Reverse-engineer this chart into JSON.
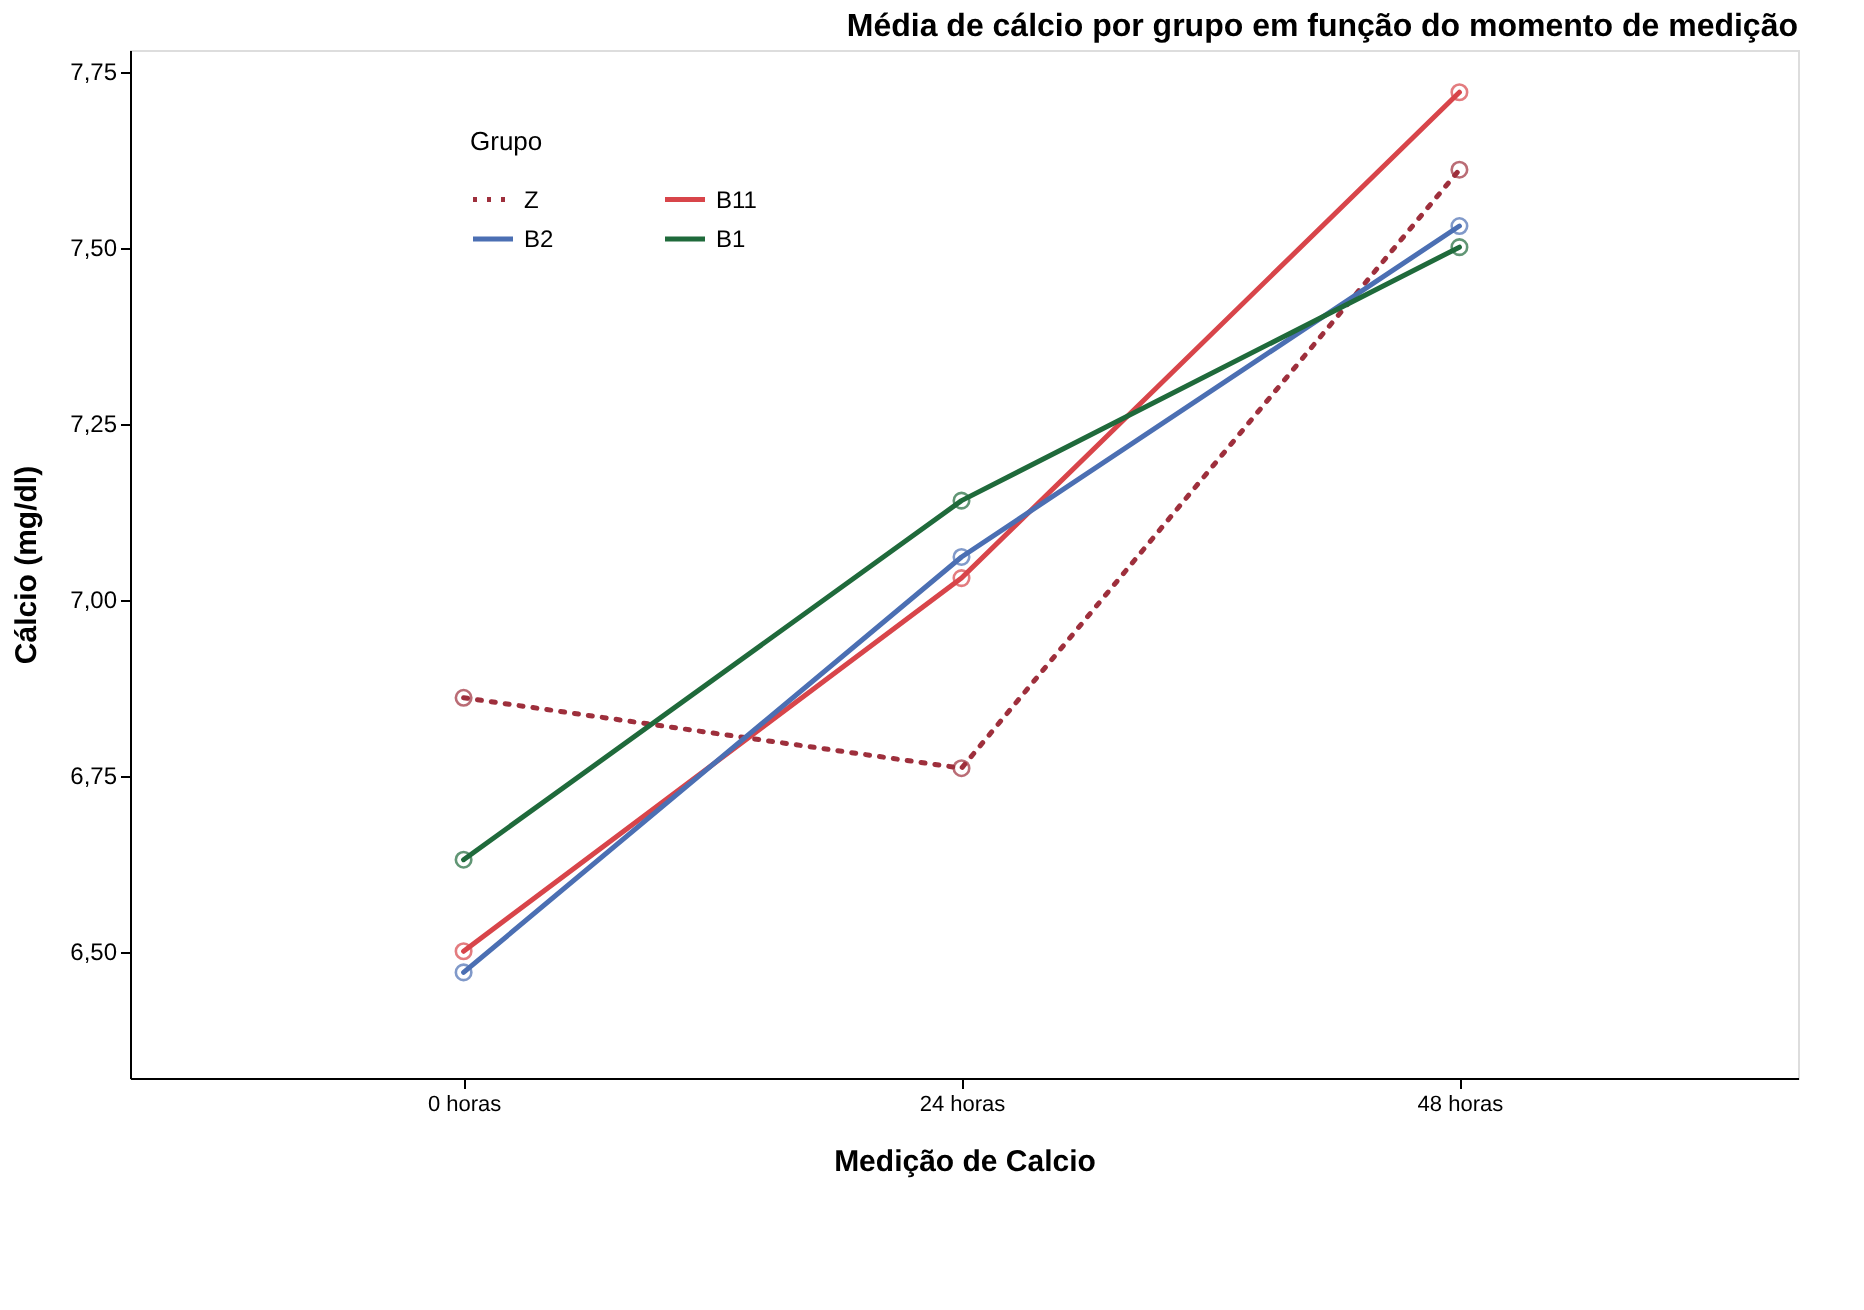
{
  "chart_data": {
    "type": "line",
    "title": "Média de cálcio por grupo em função do momento de medição",
    "xlabel": "Medição de Calcio",
    "ylabel": "Cálcio (mg/dl)",
    "legend_title": "Grupo",
    "categories": [
      "0 horas",
      "24 horas",
      "48 horas"
    ],
    "series": [
      {
        "name": "Z",
        "color": "#9e2f3c",
        "line_style": "dotted",
        "values": [
          6.86,
          6.76,
          7.61
        ]
      },
      {
        "name": "B11",
        "color": "#d8454a",
        "line_style": "solid",
        "values": [
          6.5,
          7.03,
          7.72
        ]
      },
      {
        "name": "B2",
        "color": "#4b6fb3",
        "line_style": "solid",
        "values": [
          6.47,
          7.06,
          7.53
        ]
      },
      {
        "name": "B1",
        "color": "#1f6a3b",
        "line_style": "solid",
        "values": [
          6.63,
          7.14,
          7.5
        ]
      }
    ],
    "ylim": [
      6.32,
      7.78
    ],
    "yticks": [
      {
        "value": 6.5,
        "label": "6,50"
      },
      {
        "value": 6.75,
        "label": "6,75"
      },
      {
        "value": 7.0,
        "label": "7,00"
      },
      {
        "value": 7.25,
        "label": "7,25"
      },
      {
        "value": 7.5,
        "label": "7,50"
      },
      {
        "value": 7.75,
        "label": "7,75"
      }
    ],
    "grid": false,
    "legend": "top left",
    "marker": "circle"
  }
}
